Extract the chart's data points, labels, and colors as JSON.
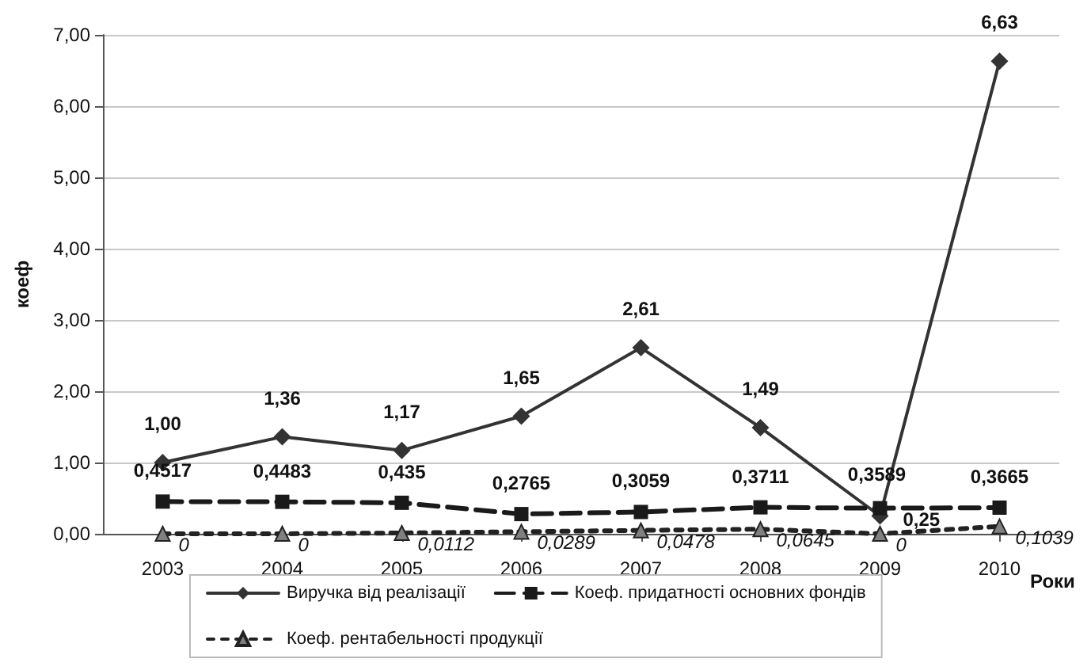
{
  "chart_data": {
    "type": "line",
    "xlabel": "Роки",
    "ylabel": "коеф",
    "categories": [
      "2003",
      "2004",
      "2005",
      "2006",
      "2007",
      "2008",
      "2009",
      "2010"
    ],
    "ylim": [
      0,
      7
    ],
    "yticks": [
      {
        "value": 0,
        "label": "0,00"
      },
      {
        "value": 1,
        "label": "1,00"
      },
      {
        "value": 2,
        "label": "2,00"
      },
      {
        "value": 3,
        "label": "3,00"
      },
      {
        "value": 4,
        "label": "4,00"
      },
      {
        "value": 5,
        "label": "5,00"
      },
      {
        "value": 6,
        "label": "6,00"
      },
      {
        "value": 7,
        "label": "7,00"
      }
    ],
    "grid": "y",
    "legend": "bottom",
    "series": [
      {
        "name": "Виручка від реалізації",
        "color": "#333333",
        "marker": "diamond",
        "line_style": "solid",
        "values": [
          1.0,
          1.36,
          1.17,
          1.65,
          2.61,
          1.49,
          0.25,
          6.63
        ],
        "value_labels": [
          "1,00",
          "1,36",
          "1,17",
          "1,65",
          "2,61",
          "1,49",
          "0,25",
          "6,63"
        ]
      },
      {
        "name": "Коеф. придатності основних фондів",
        "color": "#1a1a1a",
        "marker": "square",
        "line_style": "dashed",
        "values": [
          0.4517,
          0.4483,
          0.435,
          0.2765,
          0.3059,
          0.3711,
          0.3589,
          0.3665
        ],
        "value_labels": [
          "0,4517",
          "0,4483",
          "0,435",
          "0,2765",
          "0,3059",
          "0,3711",
          "0,3589",
          "0,3665"
        ]
      },
      {
        "name": "Коеф. рентабельності продукції",
        "color": "#808080",
        "marker": "triangle",
        "line_style": "dotted",
        "values": [
          0,
          0,
          0.0112,
          0.0289,
          0.0478,
          0.0645,
          0,
          0.1039
        ],
        "value_labels": [
          "0",
          "0",
          "0,0112",
          "0,0289",
          "0,0478",
          "0,0645",
          "0",
          "0,1039"
        ]
      }
    ]
  }
}
